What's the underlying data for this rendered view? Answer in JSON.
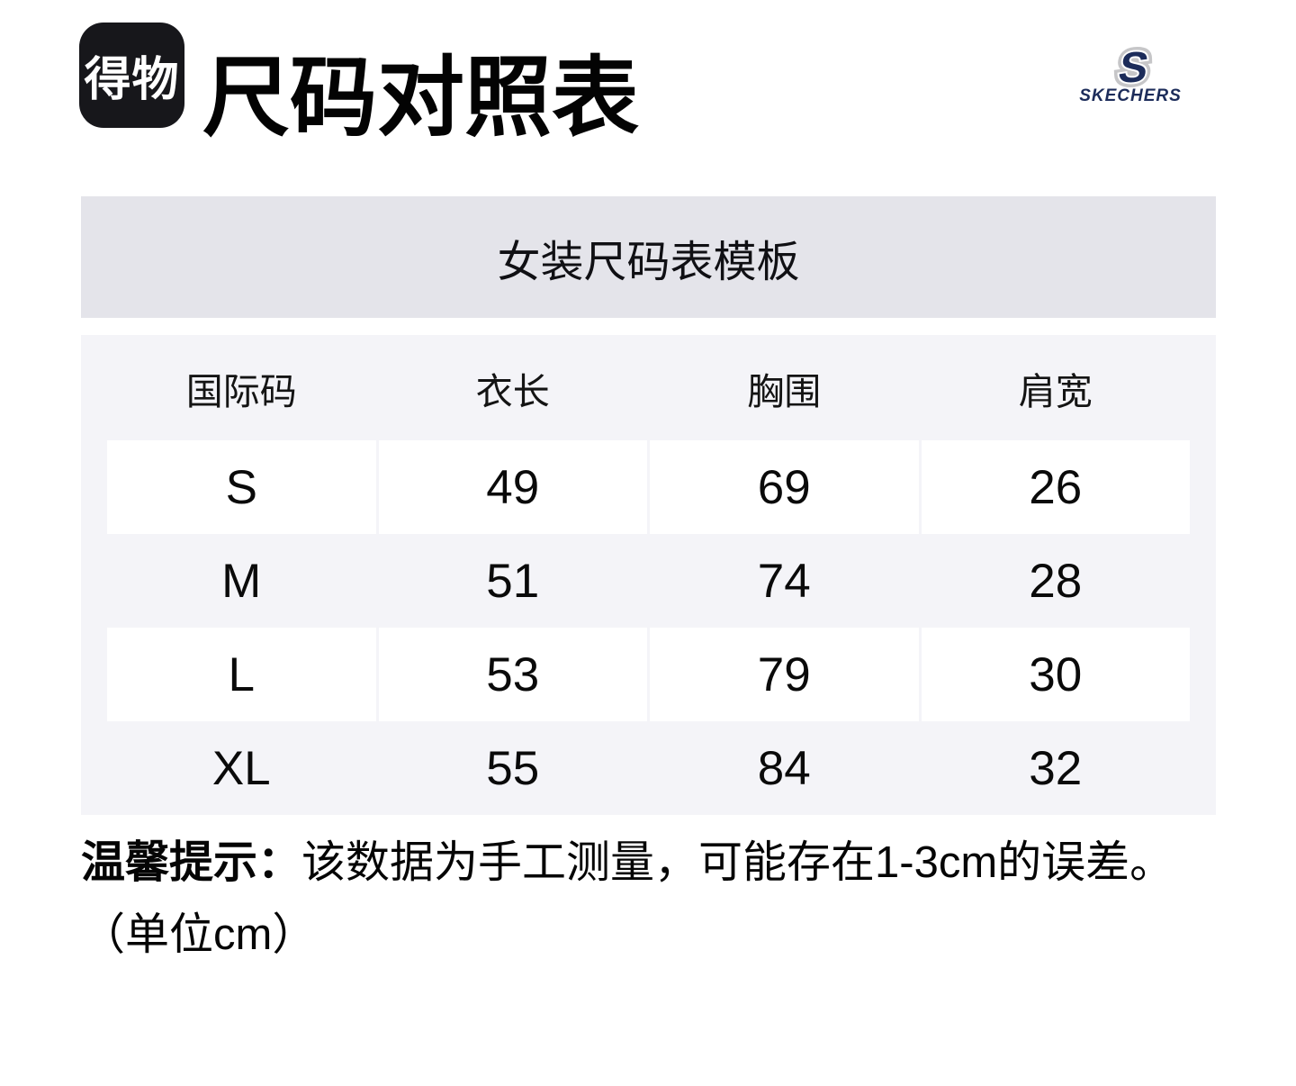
{
  "header": {
    "logo_text": "得物",
    "title": "尺码对照表",
    "brand": {
      "initial": "S",
      "name": "SKECHERS"
    }
  },
  "banner": {
    "title": "女装尺码表模板"
  },
  "size_table": {
    "columns": [
      "国际码",
      "衣长",
      "胸围",
      "肩宽"
    ],
    "rows": [
      [
        "S",
        "49",
        "69",
        "26"
      ],
      [
        "M",
        "51",
        "74",
        "28"
      ],
      [
        "L",
        "53",
        "79",
        "30"
      ],
      [
        "XL",
        "55",
        "84",
        "32"
      ]
    ]
  },
  "note": {
    "prefix": "温馨提示：",
    "text": "该数据为手工测量，可能存在1-3cm的误差。",
    "unit": "（单位cm）"
  },
  "colors": {
    "logo_bg": "#17171b",
    "banner_bg": "#e4e4ea",
    "table_bg": "#f4f4f8",
    "row_highlight": "#ffffff",
    "brand_navy": "#1c2c5a",
    "brand_outline": "#c6c6c8",
    "text": "#0a0a0a"
  }
}
